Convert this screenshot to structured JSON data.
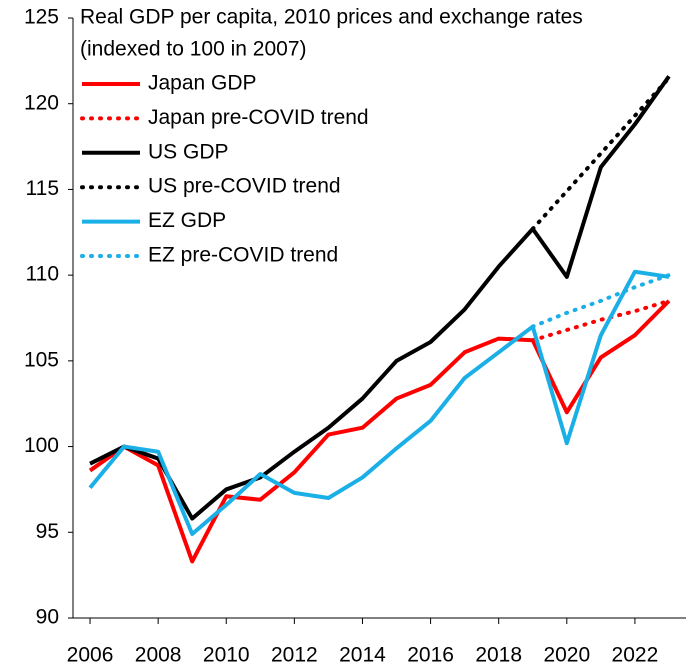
{
  "chart_data": {
    "type": "line",
    "title": "Real GDP per capita, 2010 prices and exchange rates",
    "subtitle": "(indexed to 100 in 2007)",
    "x": [
      2006,
      2007,
      2008,
      2009,
      2010,
      2011,
      2012,
      2013,
      2014,
      2015,
      2016,
      2017,
      2018,
      2019,
      2020,
      2021,
      2022,
      2023
    ],
    "series": [
      {
        "name": "Japan GDP",
        "color": "#ff0000",
        "style": "solid",
        "values": [
          98.6,
          100,
          98.9,
          93.3,
          97.1,
          96.9,
          98.5,
          100.7,
          101.1,
          102.8,
          103.6,
          105.5,
          106.3,
          106.2,
          102.0,
          105.2,
          106.5,
          108.5
        ]
      },
      {
        "name": "Japan pre-COVID trend",
        "color": "#ff0000",
        "style": "dotted",
        "values": [
          null,
          null,
          null,
          null,
          null,
          null,
          null,
          null,
          null,
          null,
          null,
          null,
          null,
          106.2,
          106.8,
          107.4,
          107.9,
          108.5
        ]
      },
      {
        "name": "US GDP",
        "color": "#000000",
        "style": "solid",
        "values": [
          99.0,
          100,
          99.3,
          95.8,
          97.5,
          98.2,
          99.7,
          101.1,
          102.8,
          105.0,
          106.1,
          108.0,
          110.5,
          112.7,
          109.9,
          116.3,
          118.8,
          121.6
        ]
      },
      {
        "name": "US pre-COVID trend",
        "color": "#000000",
        "style": "dotted",
        "values": [
          null,
          null,
          null,
          null,
          null,
          null,
          null,
          null,
          null,
          null,
          null,
          null,
          null,
          112.7,
          114.9,
          117.1,
          119.3,
          121.5
        ]
      },
      {
        "name": "EZ GDP",
        "color": "#1aafe6",
        "style": "solid",
        "values": [
          97.6,
          100,
          99.7,
          94.9,
          96.6,
          98.4,
          97.3,
          97.0,
          98.2,
          99.9,
          101.5,
          104.0,
          105.5,
          107.0,
          100.2,
          106.5,
          110.2,
          109.9
        ]
      },
      {
        "name": "EZ pre-COVID trend",
        "color": "#1aafe6",
        "style": "dotted",
        "values": [
          null,
          null,
          null,
          null,
          null,
          null,
          null,
          null,
          null,
          null,
          null,
          null,
          null,
          107.0,
          107.8,
          108.5,
          109.3,
          110.0
        ]
      }
    ],
    "xlim": [
      2005.5,
      2023.5
    ],
    "xticks": [
      2006,
      2008,
      2010,
      2012,
      2014,
      2016,
      2018,
      2020,
      2022
    ],
    "ylim": [
      90,
      125
    ],
    "yticks": [
      90,
      95,
      100,
      105,
      110,
      115,
      120,
      125
    ],
    "grid": false,
    "legend": "upper left"
  }
}
